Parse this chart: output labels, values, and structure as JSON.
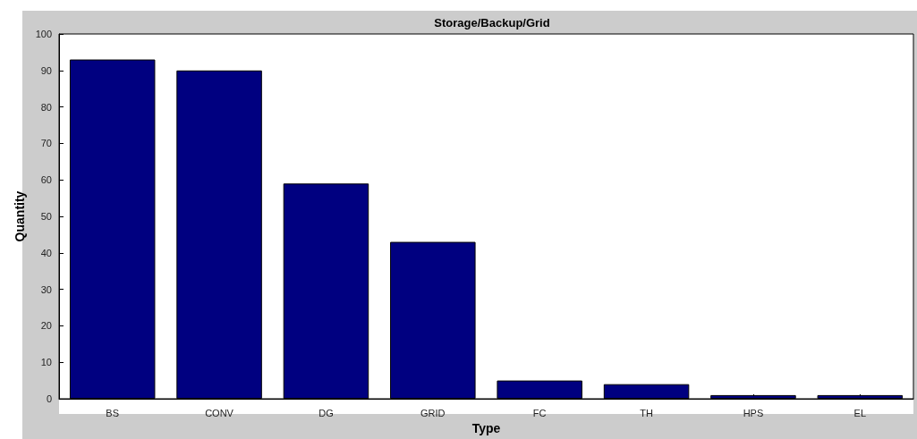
{
  "chart_data": {
    "type": "bar",
    "title": "Storage/Backup/Grid",
    "xlabel": "Type",
    "ylabel": "Quantity",
    "categories": [
      "BS",
      "CONV",
      "DG",
      "GRID",
      "FC",
      "TH",
      "HPS",
      "EL"
    ],
    "values": [
      93,
      90,
      59,
      43,
      5,
      4,
      1,
      1
    ],
    "color": "#000080",
    "ylim": [
      0,
      100
    ],
    "yticks": [
      0,
      10,
      20,
      30,
      40,
      50,
      60,
      70,
      80,
      90,
      100
    ],
    "grid": false
  }
}
